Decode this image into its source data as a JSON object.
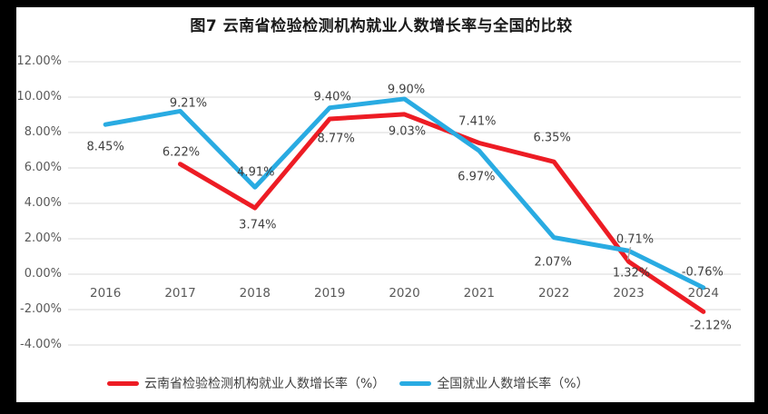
{
  "window": {
    "background": "#000000",
    "panel_background": "#ffffff"
  },
  "title": "图7  云南省检验检测机构就业人数增长率与全国的比较",
  "colors": {
    "grid": "#d9d9d9",
    "axis_text": "#595959",
    "data_label_text": "#3f3f3f",
    "leader_line": "#a6a6a6",
    "yunnan_red": "#ed1c24",
    "national_blue": "#29abe2"
  },
  "chart_data": {
    "type": "line",
    "title": "图7  云南省检验检测机构就业人数增长率与全国的比较",
    "categories": [
      "2016",
      "2017",
      "2018",
      "2019",
      "2020",
      "2021",
      "2022",
      "2023",
      "2024"
    ],
    "y_axis": {
      "min": -4,
      "max": 12,
      "step": 2,
      "tick_labels": [
        "12.00%",
        "10.00%",
        "8.00%",
        "6.00%",
        "4.00%",
        "2.00%",
        "0.00%",
        "-2.00%",
        "-4.00%"
      ],
      "tick_values": [
        12,
        10,
        8,
        6,
        4,
        2,
        0,
        -2,
        -4
      ]
    },
    "grid": true,
    "legend_position": "bottom",
    "series": [
      {
        "name": "云南省检验检测机构就业人数增长率（%）",
        "color": "#ed1c24",
        "values": [
          null,
          6.22,
          3.74,
          8.77,
          9.03,
          7.41,
          6.35,
          0.71,
          -2.12
        ],
        "point_labels": [
          null,
          "6.22%",
          "3.74%",
          "8.77%",
          "9.03%",
          "7.41%",
          "6.35%",
          "0.71%",
          "-2.12%"
        ],
        "label_offsets": [
          null,
          [
            1,
            -13
          ],
          [
            3,
            19
          ],
          [
            7,
            22
          ],
          [
            3,
            19
          ],
          [
            -2,
            -24
          ],
          [
            -2,
            -26
          ],
          [
            7,
            -24
          ],
          [
            8,
            16
          ]
        ]
      },
      {
        "name": "全国就业人数增长率（%）",
        "color": "#29abe2",
        "values": [
          8.45,
          9.21,
          4.91,
          9.4,
          9.9,
          6.97,
          2.07,
          1.32,
          -0.76
        ],
        "point_labels": [
          "8.45%",
          "9.21%",
          "4.91%",
          "9.40%",
          "9.90%",
          "6.97%",
          "2.07%",
          "1.32%",
          "-0.76%"
        ],
        "label_offsets": [
          [
            0,
            25
          ],
          [
            9,
            -8
          ],
          [
            1,
            -16
          ],
          [
            3,
            -12
          ],
          [
            2,
            -10
          ],
          [
            -3,
            29
          ],
          [
            -1,
            27
          ],
          [
            3,
            25
          ],
          [
            -1,
            -17
          ]
        ]
      }
    ],
    "leader_line": {
      "series_index": 0,
      "category_index": 7
    }
  }
}
